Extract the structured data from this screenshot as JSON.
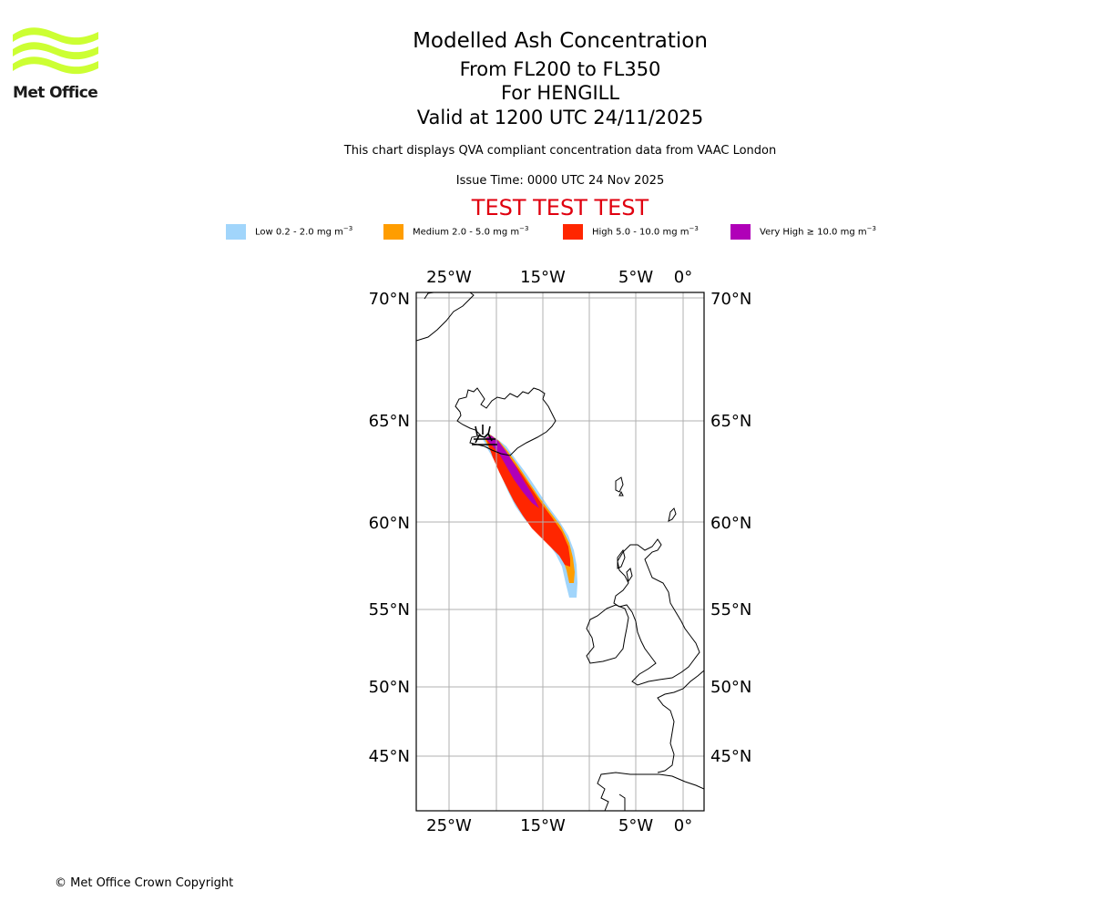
{
  "brand": {
    "logo_text": "Met Office",
    "logo_color": "#ccff33"
  },
  "header": {
    "title": "Modelled Ash Concentration",
    "subtitle_levels": "From FL200 to FL350",
    "subtitle_volcano": "For HENGILL",
    "subtitle_valid": "Valid at 1200 UTC 24/11/2025",
    "qva_note": "This chart displays QVA compliant concentration data from VAAC London",
    "issue_time": "Issue Time: 0000 UTC 24 Nov 2025",
    "test_banner": "TEST TEST TEST",
    "test_color": "#e0000f"
  },
  "legend": [
    {
      "label": "Low 0.2 - 2.0 mg m",
      "unit_exp": "−3",
      "color": "#a1d5fb"
    },
    {
      "label": "Medium 2.0 - 5.0 mg m",
      "unit_exp": "−3",
      "color": "#ff9d00"
    },
    {
      "label": "High 5.0 - 10.0 mg m",
      "unit_exp": "−3",
      "color": "#ff2600"
    },
    {
      "label": "Very High  ≥  10.0 mg m",
      "unit_exp": "−3",
      "color": "#b000b8"
    }
  ],
  "map": {
    "lon_ticks": [
      "25°W",
      "15°W",
      "5°W",
      "0°"
    ],
    "lat_ticks": [
      "70°N",
      "65°N",
      "60°N",
      "55°N",
      "50°N",
      "45°N"
    ],
    "volcano_marker": "volcano-symbol",
    "gridline_color": "#b0b0b0"
  },
  "footer": {
    "copyright": "© Met Office Crown Copyright"
  }
}
